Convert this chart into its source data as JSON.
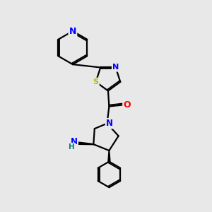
{
  "background_color": "#e8e8e8",
  "atom_colors": {
    "C": "#000000",
    "N": "#0000ff",
    "O": "#ff0000",
    "S": "#b8b800",
    "H": "#008080"
  },
  "bond_color": "#000000",
  "bond_width": 1.6,
  "figsize": [
    3.0,
    3.0
  ],
  "dpi": 100
}
